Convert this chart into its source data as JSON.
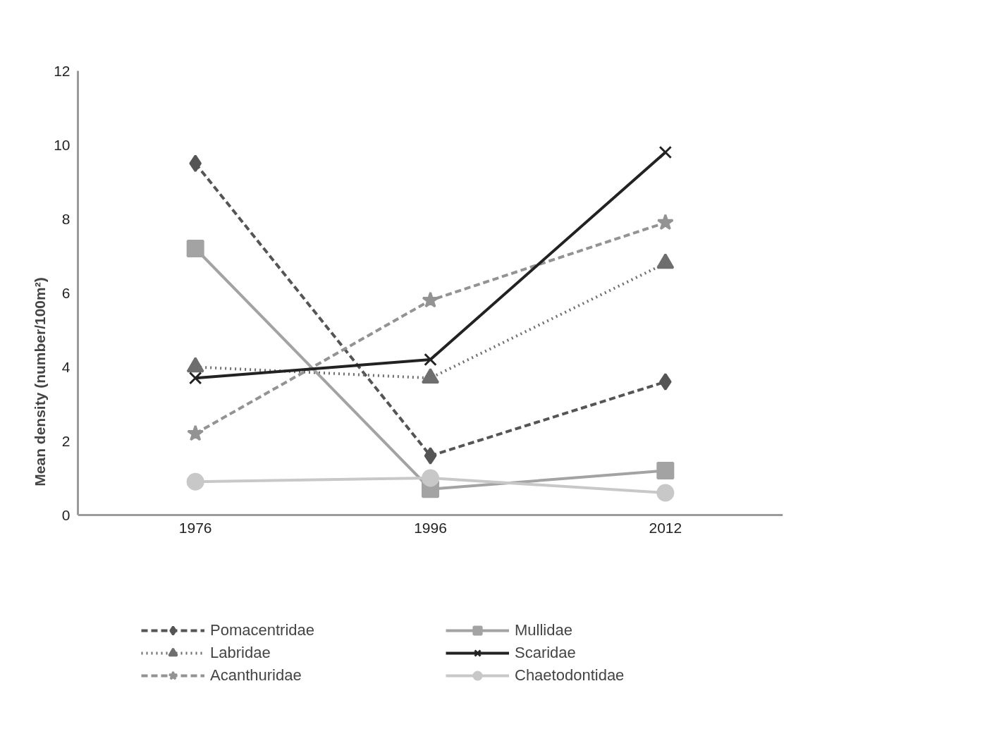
{
  "chart_data": {
    "type": "line",
    "ylabel": "Mean density (number/100m²)",
    "categories": [
      "1976",
      "1996",
      "2012"
    ],
    "ylim": [
      0,
      12
    ],
    "yticks": [
      0,
      2,
      4,
      6,
      8,
      10,
      12
    ],
    "grid": false,
    "legend": "bottom",
    "series": [
      {
        "name": "Pomacentridae",
        "color": "#555555",
        "marker": "diamond",
        "line_style": "dashed",
        "values": [
          9.5,
          1.6,
          3.6
        ]
      },
      {
        "name": "Labridae",
        "color": "#6e6e6e",
        "marker": "triangle",
        "line_style": "dotted",
        "values": [
          4.0,
          3.7,
          6.8
        ]
      },
      {
        "name": "Acanthuridae",
        "color": "#939393",
        "marker": "star",
        "line_style": "dashed",
        "values": [
          2.2,
          5.8,
          7.9
        ]
      },
      {
        "name": "Mullidae",
        "color": "#a3a3a3",
        "marker": "square",
        "line_style": "solid",
        "values": [
          7.2,
          0.7,
          1.2
        ]
      },
      {
        "name": "Scaridae",
        "color": "#222222",
        "marker": "cross",
        "line_style": "solid",
        "values": [
          3.7,
          4.2,
          9.8
        ]
      },
      {
        "name": "Chaetodontidae",
        "color": "#c8c8c8",
        "marker": "circle",
        "line_style": "solid",
        "values": [
          0.9,
          1.0,
          0.6
        ]
      }
    ]
  }
}
